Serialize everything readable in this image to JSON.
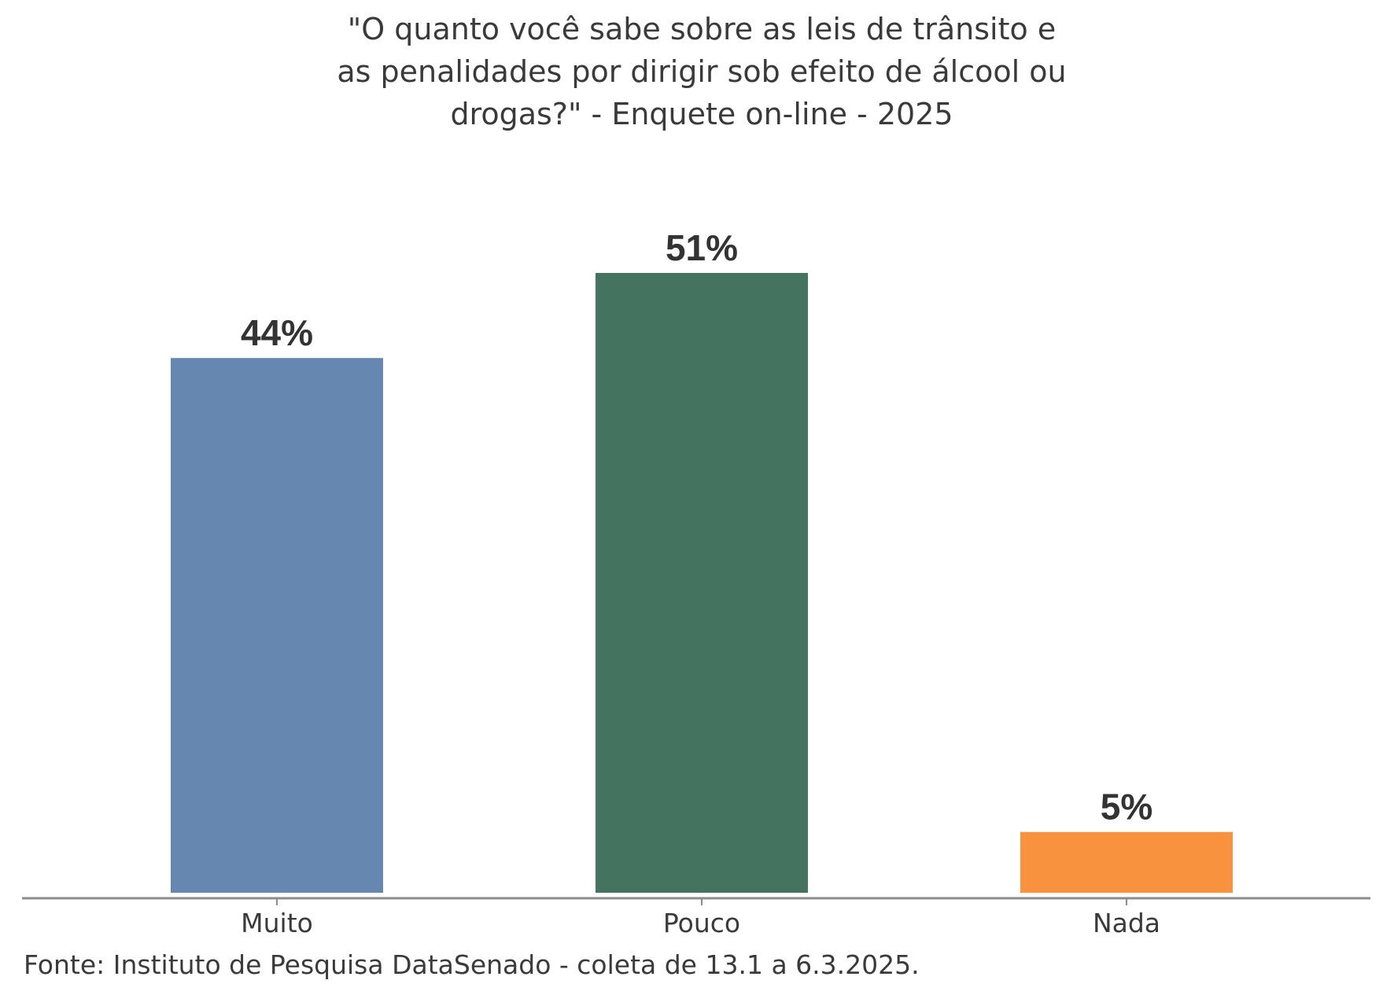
{
  "chart_data": {
    "type": "bar",
    "title_lines": [
      "\"O quanto você sabe sobre as leis de trânsito e",
      "as penalidades por dirigir sob efeito de álcool ou",
      "drogas?\" - Enquete on-line - 2025"
    ],
    "categories": [
      "Muito",
      "Pouco",
      "Nada"
    ],
    "values": [
      44,
      51,
      5
    ],
    "value_labels": [
      "44%",
      "51%",
      "5%"
    ],
    "colors": [
      "#6688b0",
      "#447360",
      "#f9923e"
    ],
    "ylim": [
      0,
      51
    ],
    "grid": false,
    "legend": "none",
    "source": "Fonte: Instituto de Pesquisa DataSenado - coleta de 13.1 a 6.3.2025."
  }
}
